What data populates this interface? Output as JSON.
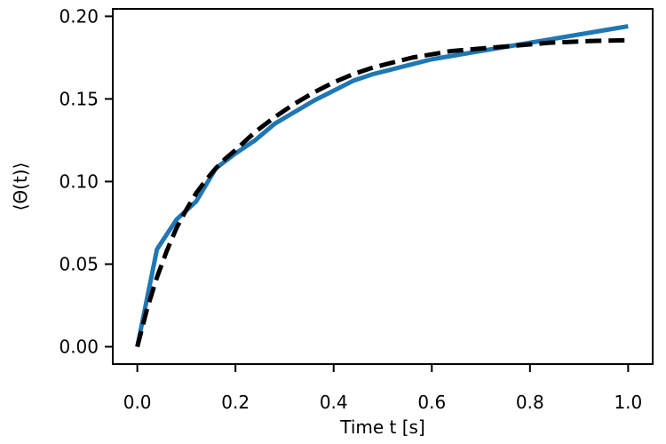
{
  "chart_data": {
    "type": "line",
    "title": "",
    "xlabel": "Time t [s]",
    "ylabel": "⟨Θ(t)⟩",
    "xlim": [
      -0.05,
      1.05
    ],
    "ylim": [
      -0.0105,
      0.2045
    ],
    "xticks": [
      0.0,
      0.2,
      0.4,
      0.6,
      0.8,
      1.0
    ],
    "xtick_labels": [
      "0.0",
      "0.2",
      "0.4",
      "0.6",
      "0.8",
      "1.0"
    ],
    "yticks": [
      0.0,
      0.05,
      0.1,
      0.15,
      0.2
    ],
    "ytick_labels": [
      "0.00",
      "0.05",
      "0.10",
      "0.15",
      "0.20"
    ],
    "grid": false,
    "legend": "none",
    "series": [
      {
        "color": "#1f77b4",
        "style": "solid",
        "x": [
          0.0,
          0.04,
          0.08,
          0.12,
          0.16,
          0.2,
          0.24,
          0.28,
          0.32,
          0.36,
          0.4,
          0.44,
          0.48,
          0.52,
          0.56,
          0.6,
          0.64,
          0.68,
          0.72,
          0.76,
          0.8,
          0.84,
          0.88,
          0.92,
          0.96,
          1.0
        ],
        "y": [
          0.0,
          0.059,
          0.077,
          0.088,
          0.108,
          0.117,
          0.125,
          0.135,
          0.142,
          0.149,
          0.155,
          0.161,
          0.165,
          0.168,
          0.171,
          0.174,
          0.176,
          0.178,
          0.18,
          0.182,
          0.184,
          0.186,
          0.188,
          0.19,
          0.192,
          0.194
        ]
      },
      {
        "color": "#000000",
        "style": "dashed",
        "x": [
          0.0,
          0.02,
          0.04,
          0.06,
          0.08,
          0.1,
          0.12,
          0.14,
          0.16,
          0.18,
          0.2,
          0.24,
          0.28,
          0.32,
          0.36,
          0.4,
          0.44,
          0.48,
          0.52,
          0.56,
          0.6,
          0.64,
          0.68,
          0.72,
          0.76,
          0.8,
          0.84,
          0.88,
          0.92,
          0.96,
          1.0
        ],
        "y": [
          0.0,
          0.023,
          0.042,
          0.058,
          0.072,
          0.083,
          0.093,
          0.101,
          0.108,
          0.114,
          0.119,
          0.13,
          0.139,
          0.147,
          0.154,
          0.16,
          0.165,
          0.169,
          0.172,
          0.175,
          0.177,
          0.179,
          0.18,
          0.181,
          0.182,
          0.183,
          0.184,
          0.1845,
          0.185,
          0.1853,
          0.1855
        ]
      }
    ]
  }
}
